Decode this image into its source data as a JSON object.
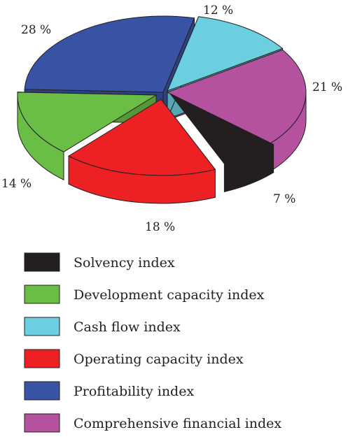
{
  "chart_data": {
    "type": "pie",
    "title": "",
    "slices": [
      {
        "label": "Solvency index",
        "value": 7,
        "display": "7 %",
        "color": "#231f20"
      },
      {
        "label": "Development capacity index",
        "value": 14,
        "display": "14 %",
        "color": "#6abd45"
      },
      {
        "label": "Cash flow index",
        "value": 12,
        "display": "12 %",
        "color": "#6ccfe0"
      },
      {
        "label": "Operating capacity index",
        "value": 18,
        "display": "18 %",
        "color": "#ed2024"
      },
      {
        "label": "Profitability index",
        "value": 28,
        "display": "28 %",
        "color": "#3953a4"
      },
      {
        "label": "Comprehensive financial index",
        "value": 21,
        "display": "21 %",
        "color": "#b452a0"
      }
    ],
    "legend_position": "bottom-left",
    "style": "3d-exploded"
  }
}
